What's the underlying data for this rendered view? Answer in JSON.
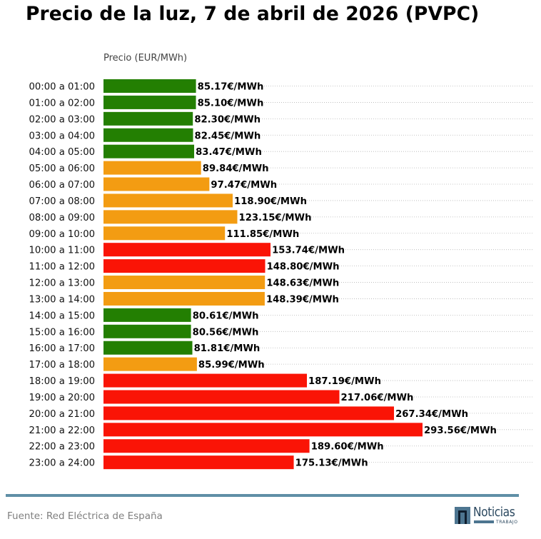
{
  "chart_data": {
    "type": "bar",
    "orientation": "horizontal",
    "title": "Precio de la luz, 7 de abril de 2026 (PVPC)",
    "xlabel": "Precio (EUR/MWh)",
    "ylabel": "",
    "value_suffix": "€/MWh",
    "grid": "dotted horizontal",
    "legend": "none",
    "xlim": [
      0,
      300
    ],
    "colors": {
      "low": "#237f02",
      "mid": "#f39c12",
      "high": "#fa1406"
    },
    "categories": [
      "00:00 a 01:00",
      "01:00 a 02:00",
      "02:00 a 03:00",
      "03:00 a 04:00",
      "04:00 a 05:00",
      "05:00 a 06:00",
      "06:00 a 07:00",
      "07:00 a 08:00",
      "08:00 a 09:00",
      "09:00 a 10:00",
      "10:00 a 11:00",
      "11:00 a 12:00",
      "12:00 a 13:00",
      "13:00 a 14:00",
      "14:00 a 15:00",
      "15:00 a 16:00",
      "16:00 a 17:00",
      "17:00 a 18:00",
      "18:00 a 19:00",
      "19:00 a 20:00",
      "20:00 a 21:00",
      "21:00 a 22:00",
      "22:00 a 23:00",
      "23:00 a 24:00"
    ],
    "values": [
      85.17,
      85.1,
      82.3,
      82.45,
      83.47,
      89.84,
      97.47,
      118.9,
      123.15,
      111.85,
      153.74,
      148.8,
      148.63,
      148.39,
      80.61,
      80.56,
      81.81,
      85.99,
      187.19,
      217.06,
      267.34,
      293.56,
      189.6,
      175.13
    ],
    "value_labels": [
      "85.17€/MWh",
      "85.10€/MWh",
      "82.30€/MWh",
      "82.45€/MWh",
      "83.47€/MWh",
      "89.84€/MWh",
      "97.47€/MWh",
      "118.90€/MWh",
      "123.15€/MWh",
      "111.85€/MWh",
      "153.74€/MWh",
      "148.80€/MWh",
      "148.63€/MWh",
      "148.39€/MWh",
      "80.61€/MWh",
      "80.56€/MWh",
      "81.81€/MWh",
      "85.99€/MWh",
      "187.19€/MWh",
      "217.06€/MWh",
      "267.34€/MWh",
      "293.56€/MWh",
      "189.60€/MWh",
      "175.13€/MWh"
    ],
    "levels": [
      "low",
      "low",
      "low",
      "low",
      "low",
      "mid",
      "mid",
      "mid",
      "mid",
      "mid",
      "high",
      "high",
      "mid",
      "mid",
      "low",
      "low",
      "low",
      "mid",
      "high",
      "high",
      "high",
      "high",
      "high",
      "high"
    ]
  },
  "footer": {
    "source": "Fuente: Red Eléctrica de España",
    "logo_word": "Noticias",
    "logo_sub": "TRABAJO"
  }
}
